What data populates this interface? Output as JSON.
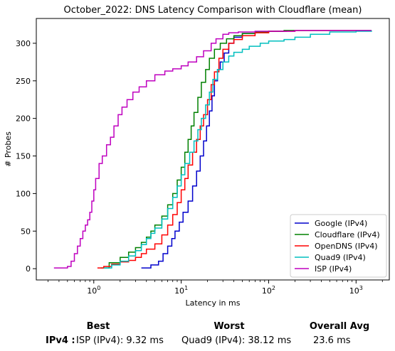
{
  "chart_data": {
    "type": "line",
    "title": "October_2022: DNS Latency Comparison with Cloudflare (mean)",
    "xlabel": "Latency in ms",
    "ylabel": "# Probes",
    "x_scale": "log",
    "xlim": [
      0.22,
      2400
    ],
    "ylim": [
      -15,
      333
    ],
    "x_ticks": [
      1,
      10,
      100,
      1000
    ],
    "x_tick_labels": [
      "10^0",
      "10^1",
      "10^2",
      "10^3"
    ],
    "y_ticks": [
      0,
      50,
      100,
      150,
      200,
      250,
      300
    ],
    "grid": false,
    "legend_position": "lower-right",
    "series": [
      {
        "name": "Google (IPv4)",
        "color": "#0000cc",
        "x": [
          3.5,
          4.5,
          5.5,
          6.2,
          7,
          7.8,
          8.5,
          9.5,
          10.5,
          12,
          13.5,
          15,
          16.5,
          18,
          19.5,
          21,
          22.5,
          24,
          26,
          28,
          31,
          35,
          40,
          50,
          70,
          100,
          160
        ],
        "y": [
          1,
          5,
          10,
          20,
          30,
          40,
          50,
          62,
          75,
          90,
          110,
          130,
          150,
          170,
          190,
          210,
          230,
          250,
          265,
          275,
          287,
          300,
          308,
          313,
          315,
          316,
          317
        ]
      },
      {
        "name": "Cloudflare (IPv4)",
        "color": "#008000",
        "x": [
          1.2,
          1.5,
          2,
          2.5,
          3,
          3.5,
          4,
          4.5,
          5,
          6,
          7,
          8,
          9,
          10,
          11,
          12,
          13,
          14,
          15.5,
          17,
          19,
          21,
          24,
          28,
          33,
          40,
          50,
          70,
          100,
          150,
          300,
          1500
        ],
        "y": [
          1,
          8,
          15,
          22,
          28,
          35,
          42,
          50,
          58,
          70,
          85,
          100,
          118,
          135,
          155,
          172,
          190,
          208,
          228,
          248,
          265,
          280,
          292,
          300,
          306,
          310,
          313,
          315,
          316,
          317,
          317,
          317
        ]
      },
      {
        "name": "OpenDNS (IPv4)",
        "color": "#ff0000",
        "x": [
          1.1,
          1.3,
          1.6,
          2,
          2.5,
          3,
          3.5,
          4,
          5,
          6,
          7,
          8,
          9,
          10,
          11,
          12,
          13.5,
          15,
          16.5,
          18,
          20,
          22,
          24,
          27,
          30,
          35,
          40,
          50,
          70,
          100,
          200,
          1000
        ],
        "y": [
          1,
          3,
          6,
          9,
          11,
          15,
          20,
          26,
          33,
          45,
          58,
          72,
          88,
          105,
          120,
          138,
          155,
          172,
          190,
          205,
          225,
          245,
          262,
          280,
          292,
          300,
          305,
          310,
          314,
          316,
          317,
          317
        ]
      },
      {
        "name": "Quad9 (IPv4)",
        "color": "#00bfbf",
        "x": [
          1.3,
          1.6,
          2,
          2.5,
          3,
          3.5,
          4,
          4.5,
          5,
          6,
          7,
          8,
          9,
          10,
          11,
          12.5,
          14,
          15.5,
          17,
          19,
          21,
          23,
          26,
          30,
          35,
          40,
          50,
          60,
          80,
          100,
          150,
          200,
          300,
          500,
          1000,
          1500
        ],
        "y": [
          1,
          5,
          10,
          17,
          24,
          32,
          40,
          47,
          54,
          66,
          80,
          95,
          110,
          125,
          140,
          155,
          170,
          185,
          200,
          218,
          235,
          252,
          265,
          275,
          283,
          288,
          292,
          296,
          300,
          303,
          305,
          308,
          312,
          315,
          316,
          317
        ]
      },
      {
        "name": "ISP (IPv4)",
        "color": "#bf00bf",
        "x": [
          0.35,
          0.5,
          0.55,
          0.6,
          0.65,
          0.7,
          0.75,
          0.8,
          0.85,
          0.9,
          0.95,
          1,
          1.05,
          1.15,
          1.25,
          1.4,
          1.55,
          1.7,
          1.9,
          2.1,
          2.4,
          2.8,
          3.3,
          4,
          5,
          6.5,
          8,
          10,
          12,
          15,
          18,
          22,
          25,
          30,
          35,
          45,
          70,
          200,
          1500
        ],
        "y": [
          1,
          3,
          10,
          20,
          30,
          40,
          50,
          58,
          65,
          75,
          90,
          105,
          120,
          140,
          150,
          165,
          175,
          190,
          205,
          215,
          225,
          235,
          242,
          250,
          258,
          263,
          266,
          270,
          275,
          282,
          290,
          300,
          306,
          312,
          314,
          315,
          316,
          317,
          317
        ]
      }
    ]
  },
  "stats": {
    "best_header": "Best",
    "worst_header": "Worst",
    "avg_header": "Overall Avg",
    "row_label": "IPv4 :",
    "best_value": "ISP (IPv4): 9.32 ms",
    "worst_value": "Quad9 (IPv4): 38.12 ms",
    "avg_value": "23.6 ms"
  }
}
